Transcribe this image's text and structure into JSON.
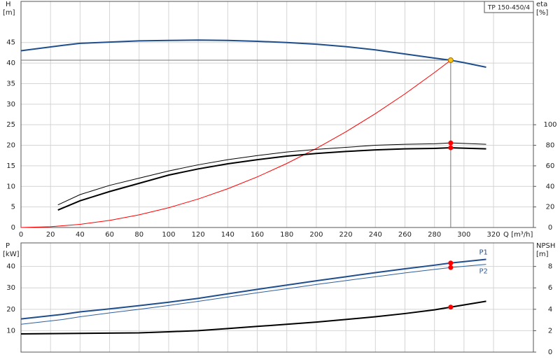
{
  "chart_data": [
    {
      "type": "line",
      "title": "TP 150-450/4",
      "ylabel": "H",
      "yunit": "[m]",
      "y2label": "eta",
      "y2unit": "[%]",
      "xlabel": "Q [m³/h]",
      "xlim": [
        0,
        347
      ],
      "xticks": [
        0,
        20,
        40,
        60,
        80,
        100,
        120,
        140,
        160,
        180,
        200,
        220,
        240,
        260,
        280,
        300,
        320
      ],
      "ylim": [
        0,
        55
      ],
      "yticks": [
        0,
        5,
        10,
        15,
        20,
        25,
        30,
        35,
        40,
        45
      ],
      "y2lim": [
        0,
        220
      ],
      "y2ticks": [
        0,
        20,
        40,
        60,
        80,
        100
      ],
      "grid": true,
      "series": [
        {
          "color": "#1f4e8c",
          "x": [
            0,
            28,
            40,
            60,
            80,
            100,
            120,
            140,
            160,
            180,
            200,
            220,
            240,
            260,
            280,
            291,
            300,
            315
          ],
          "values": [
            43,
            44.3,
            44.8,
            45.1,
            45.4,
            45.5,
            45.6,
            45.5,
            45.3,
            45.0,
            44.6,
            44.0,
            43.2,
            42.2,
            41.2,
            40.7,
            40.1,
            39.0
          ]
        },
        {
          "color": "#ff0000",
          "x": [
            0,
            20,
            40,
            60,
            80,
            100,
            120,
            140,
            160,
            180,
            200,
            220,
            240,
            260,
            280,
            291
          ],
          "values": [
            0,
            0.19,
            0.77,
            1.73,
            3.08,
            4.81,
            6.93,
            9.43,
            12.31,
            15.58,
            19.24,
            23.28,
            27.7,
            32.5,
            37.7,
            40.7
          ]
        },
        {
          "color": "#000000",
          "axis": "y2",
          "x": [
            25,
            40,
            60,
            80,
            100,
            120,
            140,
            160,
            180,
            200,
            220,
            240,
            260,
            280,
            291,
            315
          ],
          "values": [
            22,
            32,
            41,
            48,
            55,
            61,
            66,
            70,
            73.5,
            76,
            78,
            80,
            81,
            81.5,
            82.3,
            81
          ]
        },
        {
          "color": "#000000",
          "axis": "y2",
          "x": [
            25,
            40,
            60,
            80,
            100,
            120,
            140,
            160,
            180,
            200,
            220,
            240,
            260,
            280,
            291,
            315
          ],
          "values": [
            17,
            26,
            35,
            43,
            51,
            57,
            62,
            66,
            69.5,
            72,
            74,
            75.5,
            76.5,
            77,
            77.6,
            76.5
          ]
        }
      ],
      "markers": [
        {
          "x": 291,
          "y": 40.7,
          "color": "#f5c518"
        },
        {
          "x": 291,
          "y": 82.3,
          "color": "#ff0000",
          "axis": "y2"
        },
        {
          "x": 291,
          "y": 77.6,
          "color": "#ff0000",
          "axis": "y2"
        }
      ]
    },
    {
      "type": "line",
      "ylabel": "P",
      "yunit": "[kW]",
      "y2label": "NPSH",
      "y2unit": "[m]",
      "xlim": [
        0,
        347
      ],
      "ylim": [
        0,
        51
      ],
      "yticks": [
        10,
        20,
        30,
        40
      ],
      "y2lim": [
        0,
        10.2
      ],
      "y2ticks": [
        0,
        2,
        4,
        6,
        8
      ],
      "grid": true,
      "series": [
        {
          "name": "P1",
          "color": "#1f4e8c",
          "x": [
            0,
            28,
            40,
            60,
            80,
            100,
            120,
            140,
            160,
            180,
            200,
            220,
            240,
            260,
            280,
            291,
            315
          ],
          "values": [
            15.5,
            17.6,
            18.8,
            20.2,
            21.7,
            23.3,
            25.1,
            27.2,
            29.3,
            31.3,
            33.3,
            35.2,
            37.1,
            38.9,
            40.6,
            41.6,
            43.3
          ]
        },
        {
          "name": "P2",
          "color": "#2d5f9e",
          "x": [
            0,
            28,
            40,
            60,
            80,
            100,
            120,
            140,
            160,
            180,
            200,
            220,
            240,
            260,
            280,
            291,
            315
          ],
          "values": [
            13.0,
            15.2,
            16.5,
            18.3,
            20.0,
            21.8,
            23.7,
            25.7,
            27.7,
            29.6,
            31.6,
            33.4,
            35.2,
            37.0,
            38.6,
            39.5,
            41.0
          ]
        },
        {
          "color": "#000000",
          "axis": "y2",
          "x": [
            0,
            40,
            80,
            100,
            120,
            140,
            160,
            180,
            200,
            220,
            240,
            260,
            280,
            291,
            315
          ],
          "values": [
            1.7,
            1.75,
            1.8,
            1.9,
            2.0,
            2.2,
            2.4,
            2.6,
            2.8,
            3.05,
            3.3,
            3.6,
            3.95,
            4.2,
            4.75
          ]
        }
      ],
      "markers": [
        {
          "x": 291,
          "y": 41.6,
          "color": "#ff0000"
        },
        {
          "x": 291,
          "y": 39.5,
          "color": "#ff0000"
        },
        {
          "x": 291,
          "y": 4.2,
          "color": "#ff0000",
          "axis": "y2"
        }
      ]
    }
  ]
}
